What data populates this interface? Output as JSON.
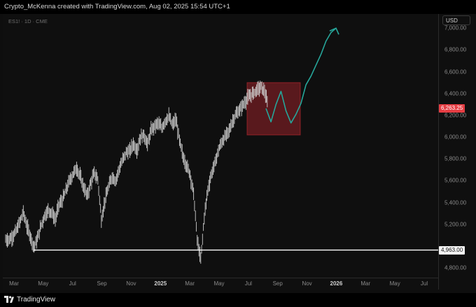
{
  "header": {
    "caption": "Crypto_McKenna created with TradingView.com, Aug 02, 2025 15:54 UTC+1"
  },
  "symbol": {
    "text": "ES1! · 1D · CME"
  },
  "price_axis": {
    "currency": "USD",
    "ticks": [
      "7,000.00",
      "6,800.00",
      "6,600.00",
      "6,400.00",
      "6,200.00",
      "6,000.00",
      "5,800.00",
      "5,600.00",
      "5,400.00",
      "5,200.00",
      "4,800.00"
    ],
    "tick_values": [
      7000,
      6800,
      6600,
      6400,
      6200,
      6000,
      5800,
      5600,
      5400,
      5200,
      4800
    ],
    "last_price_label": "6,263.25",
    "last_price": 6263.25,
    "level_label": "4,963.00",
    "level": 4963
  },
  "time_axis": {
    "labels": [
      "Mar",
      "May",
      "Jul",
      "Sep",
      "Nov",
      "2025",
      "Mar",
      "May",
      "Jul",
      "Sep",
      "Nov",
      "2026",
      "Mar",
      "May",
      "Jul"
    ]
  },
  "colors": {
    "price_line": "#cfcfcf",
    "projection": "#26a69a",
    "zone": "#b3262e",
    "last_price_badge": "#e53d43",
    "support_line": "#ffffff"
  },
  "footer": {
    "brand": "TradingView"
  },
  "chart_data": {
    "type": "line",
    "title": "",
    "series": [
      {
        "values": [
          5060,
          5090,
          5140,
          5220,
          5310,
          5180,
          5090,
          4990,
          5070,
          5190,
          5280,
          5330,
          5310,
          5240,
          5380,
          5420,
          5510,
          5600,
          5660,
          5720,
          5640,
          5540,
          5460,
          5580,
          5670,
          5610,
          5240,
          5420,
          5540,
          5640,
          5600,
          5710,
          5790,
          5860,
          5870,
          5940,
          5880,
          6000,
          6020,
          5930,
          6060,
          6100,
          6130,
          6080,
          6150,
          6190,
          6110,
          6160,
          5970,
          5820,
          5740,
          5660,
          5480,
          5060,
          4870,
          5270,
          5520,
          5660,
          5760,
          5880,
          5960,
          6010,
          6060,
          6150,
          6210,
          6250,
          6300,
          6350,
          6380,
          6410,
          6440,
          6460,
          6420,
          6270
        ]
      }
    ],
    "projection": {
      "start": 6263.25,
      "path": [
        6263,
        6140,
        6300,
        6420,
        6240,
        6130,
        6210,
        6310,
        6480,
        6560,
        6660,
        6760,
        6880,
        6960,
        7000
      ]
    },
    "zone": {
      "price_low": 6020,
      "price_high": 6500
    },
    "support_level": 4963,
    "ylim": [
      4710,
      7130
    ]
  }
}
